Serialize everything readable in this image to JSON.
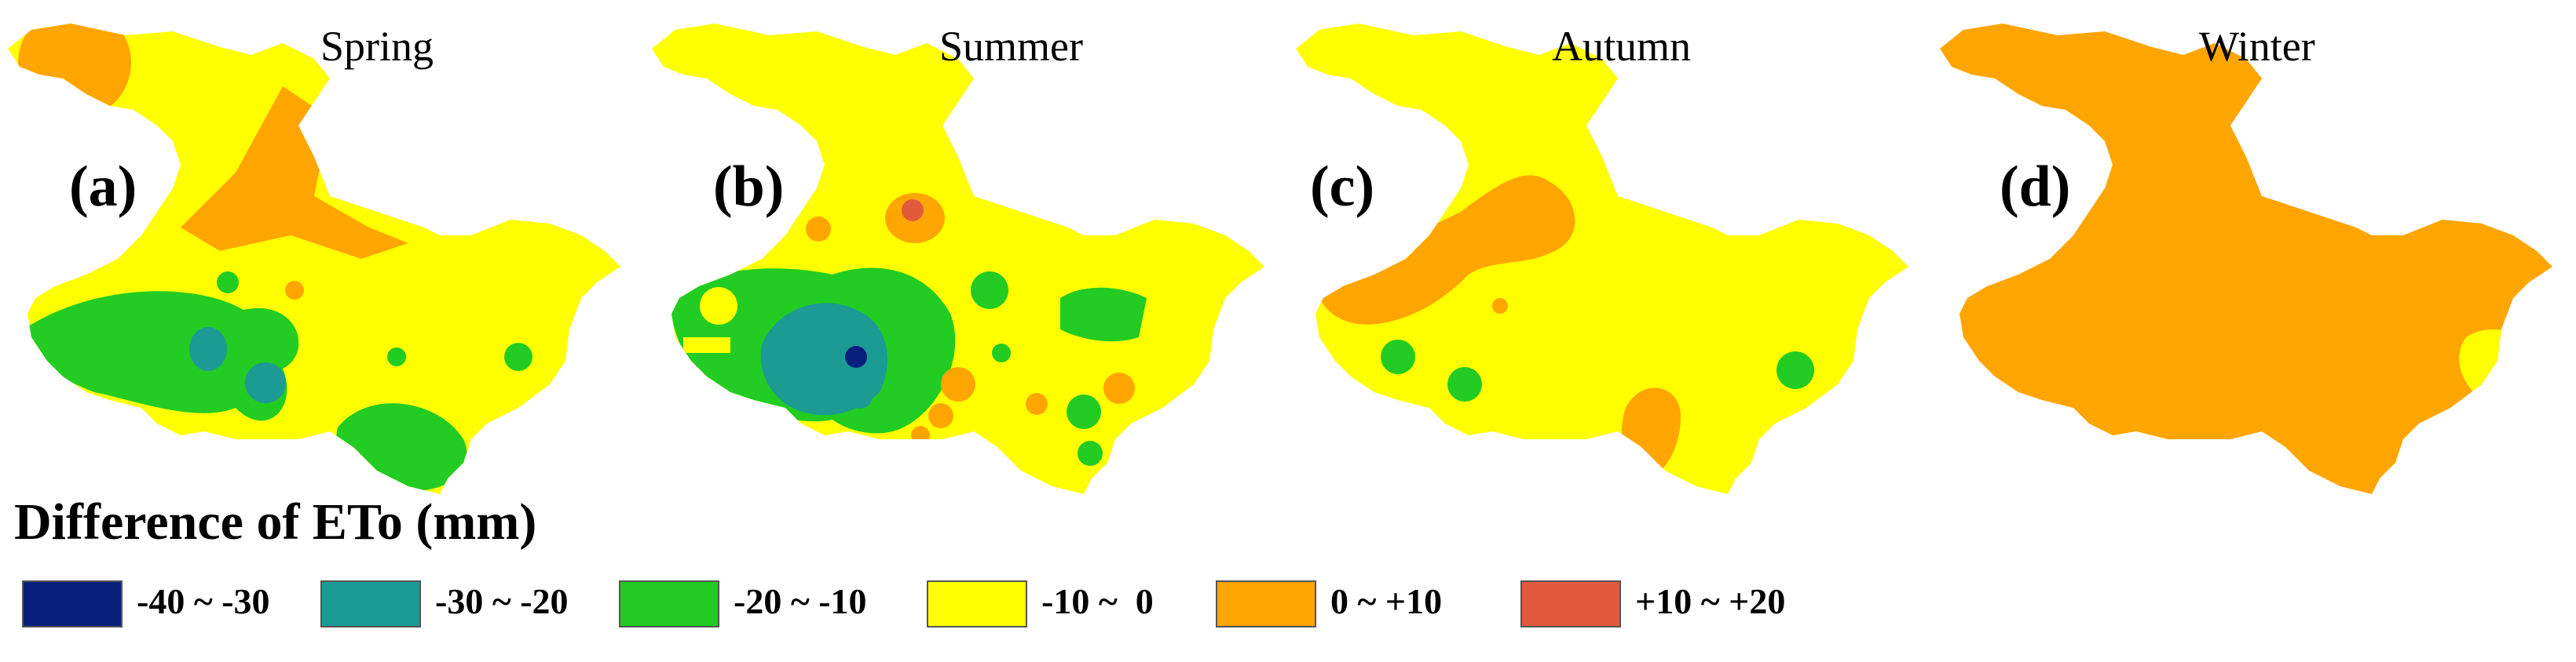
{
  "colors": {
    "c1": "#0a1f7c",
    "c2": "#1c9a94",
    "c3": "#22cc22",
    "c4": "#ffff00",
    "c5": "#ffa500",
    "c6": "#e15a3c"
  },
  "panels": [
    {
      "id": "a",
      "title": "Spring",
      "letter": "(a)",
      "base_class": "c4"
    },
    {
      "id": "b",
      "title": "Summer",
      "letter": "(b)",
      "base_class": "c4"
    },
    {
      "id": "c",
      "title": "Autumn",
      "letter": "(c)",
      "base_class": "c4"
    },
    {
      "id": "d",
      "title": "Winter",
      "letter": "(d)",
      "base_class": "c5"
    }
  ],
  "legend": {
    "title": "Difference of ETo (mm)",
    "items": [
      {
        "class": "c1",
        "label": "-40 ~ -30"
      },
      {
        "class": "c2",
        "label": "-30 ~ -20"
      },
      {
        "class": "c3",
        "label": "-20 ~ -10"
      },
      {
        "class": "c4",
        "label": "-10 ~  0"
      },
      {
        "class": "c5",
        "label": "0 ~ +10"
      },
      {
        "class": "c6",
        "label": "+10 ~ +20"
      }
    ]
  }
}
